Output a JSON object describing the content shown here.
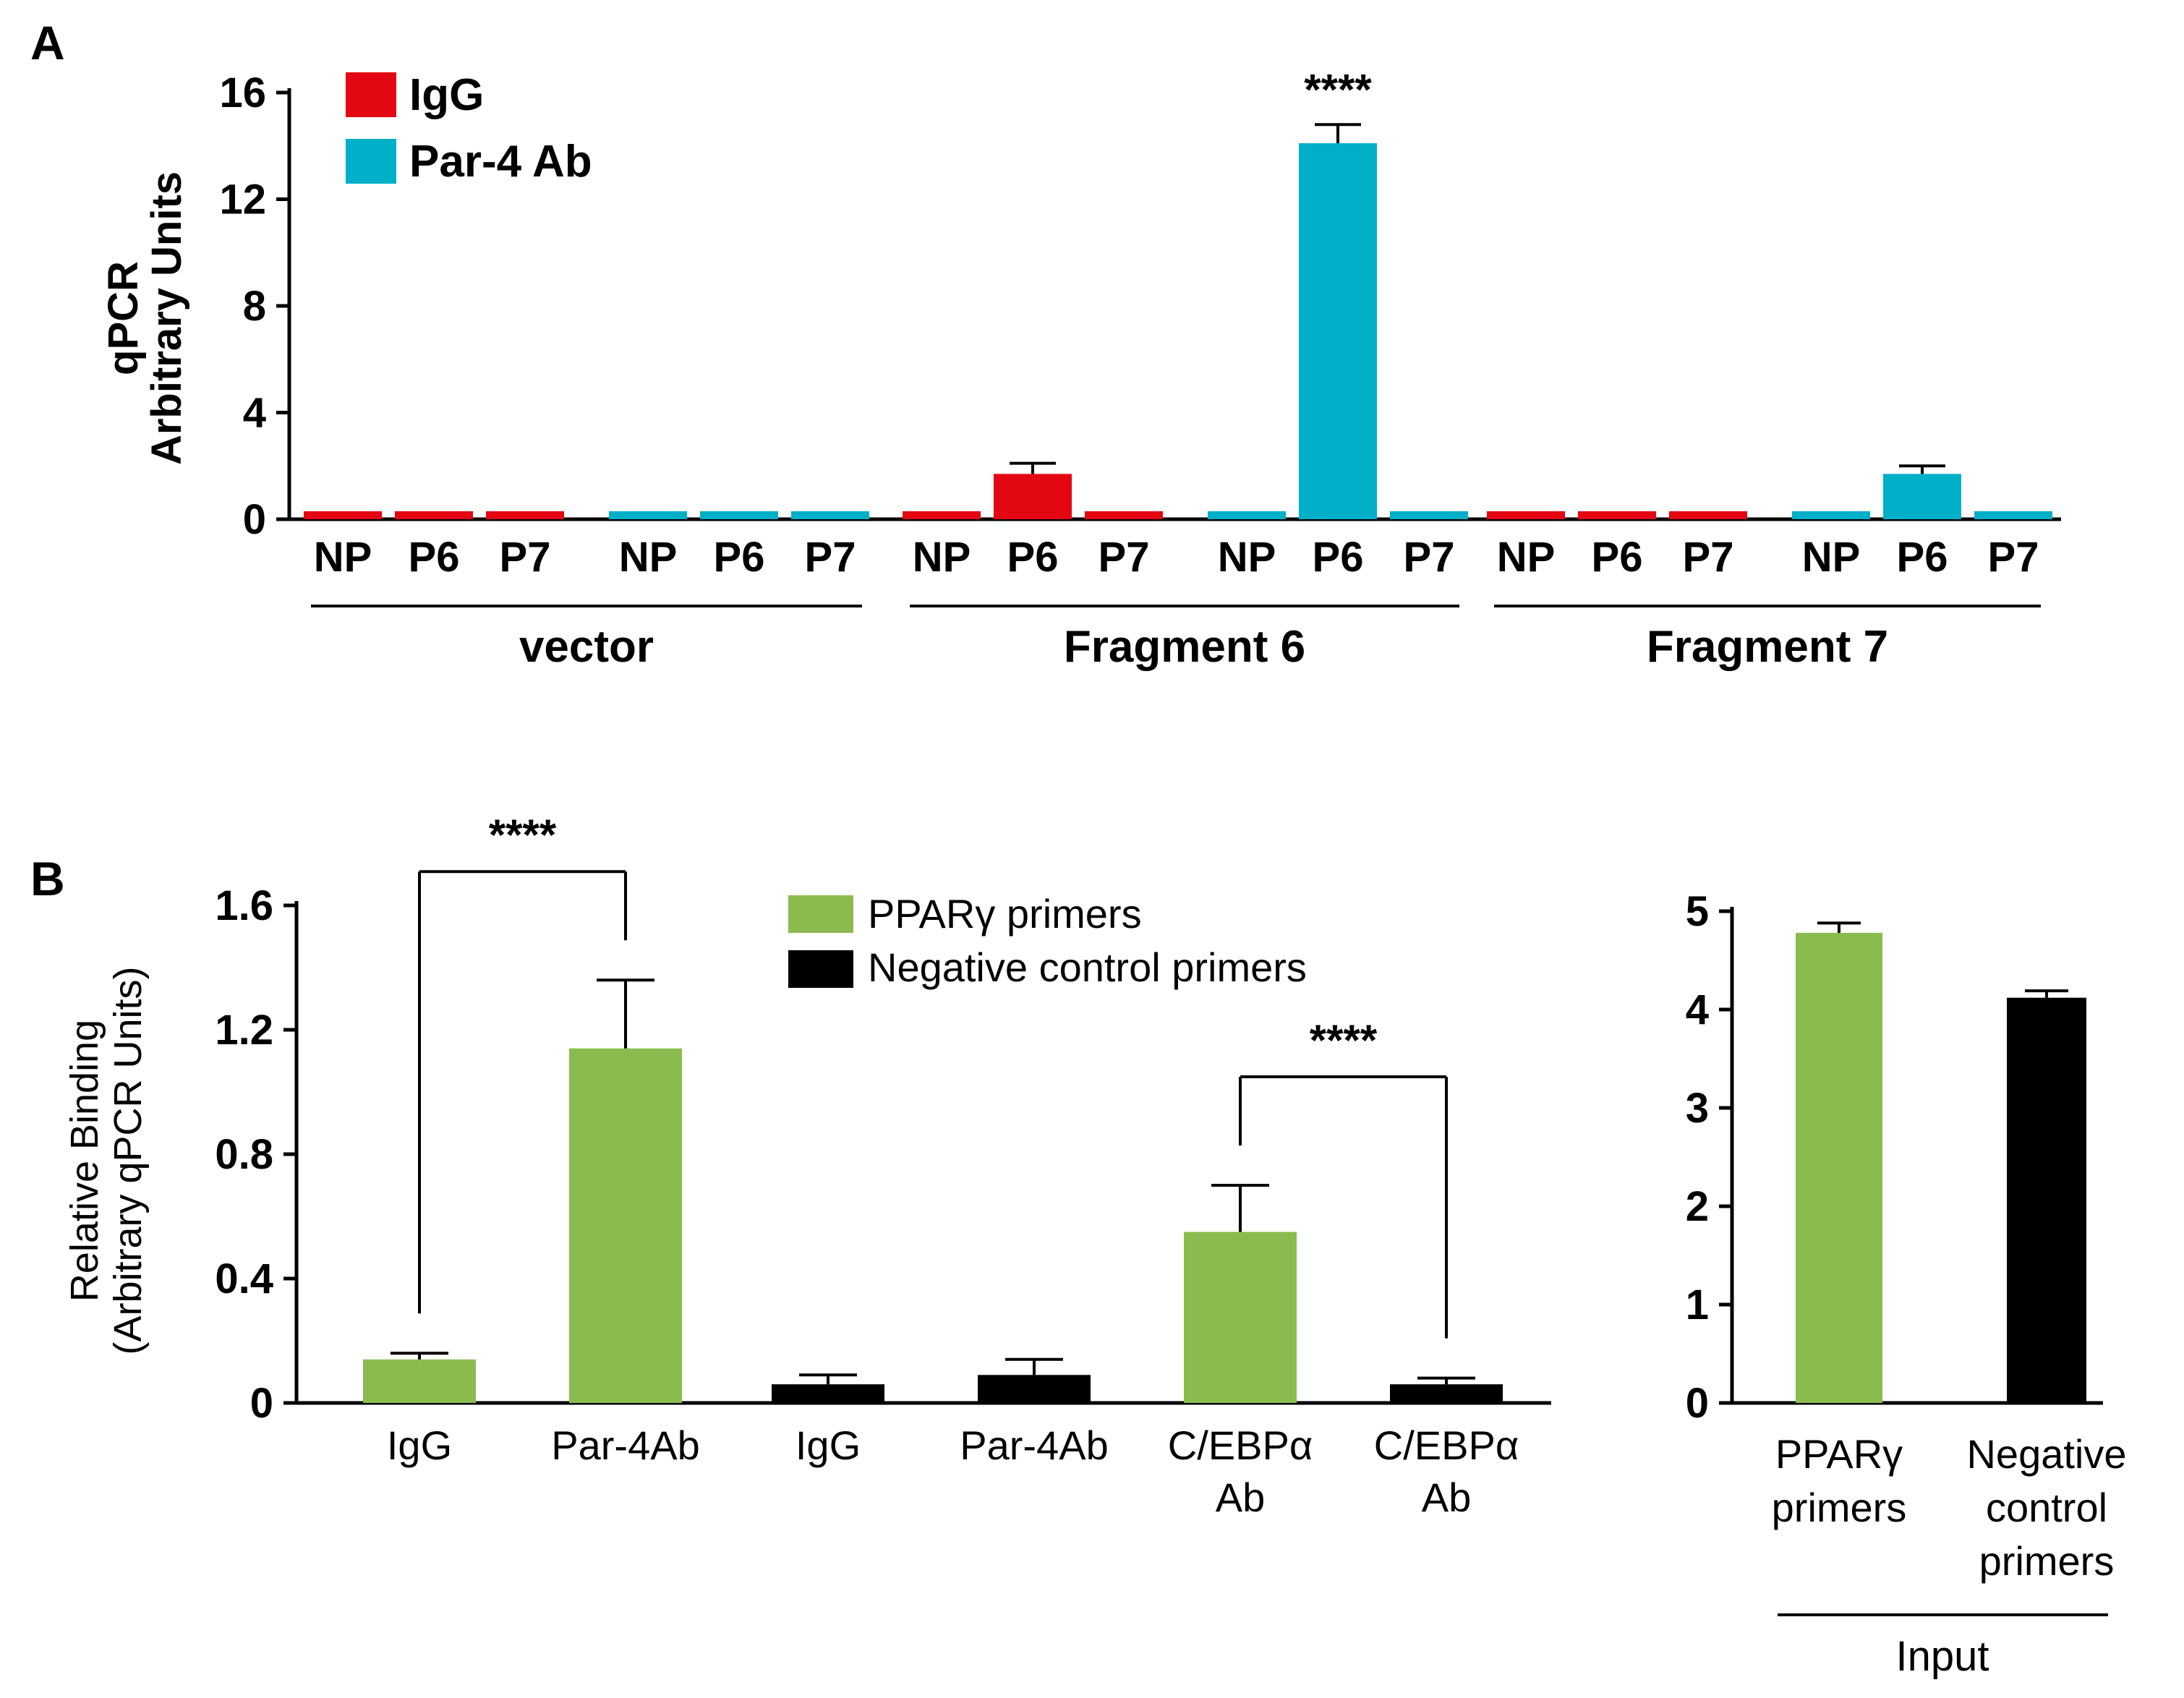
{
  "colors": {
    "igg": "#e30613",
    "par4": "#00afc8",
    "green": "#8bbb4f",
    "black": "#000000",
    "axis": "#000000"
  },
  "chart_data": [
    {
      "type": "bar",
      "panel_label": "A",
      "ylabel": [
        "qPCR",
        "Arbitrary Units"
      ],
      "ylim": [
        0,
        16
      ],
      "yticks": [
        0,
        4,
        8,
        12,
        16
      ],
      "legend": [
        {
          "name": "IgG",
          "color": "#e30613"
        },
        {
          "name": "Par-4 Ab",
          "color": "#00afc8"
        }
      ],
      "groups": [
        {
          "label": "vector",
          "bars": [
            {
              "category": "NP",
              "series": "IgG",
              "value": 0.3,
              "error": 0
            },
            {
              "category": "P6",
              "series": "IgG",
              "value": 0.3,
              "error": 0
            },
            {
              "category": "P7",
              "series": "IgG",
              "value": 0.3,
              "error": 0
            },
            {
              "category": "NP",
              "series": "Par-4 Ab",
              "value": 0.3,
              "error": 0
            },
            {
              "category": "P6",
              "series": "Par-4 Ab",
              "value": 0.3,
              "error": 0
            },
            {
              "category": "P7",
              "series": "Par-4 Ab",
              "value": 0.3,
              "error": 0
            }
          ]
        },
        {
          "label": "Fragment 6",
          "bars": [
            {
              "category": "NP",
              "series": "IgG",
              "value": 0.3,
              "error": 0
            },
            {
              "category": "P6",
              "series": "IgG",
              "value": 1.7,
              "error": 0.4
            },
            {
              "category": "P7",
              "series": "IgG",
              "value": 0.3,
              "error": 0
            },
            {
              "category": "NP",
              "series": "Par-4 Ab",
              "value": 0.3,
              "error": 0
            },
            {
              "category": "P6",
              "series": "Par-4 Ab",
              "value": 14.1,
              "error": 0.7,
              "annotation": "****"
            },
            {
              "category": "P7",
              "series": "Par-4 Ab",
              "value": 0.3,
              "error": 0
            }
          ]
        },
        {
          "label": "Fragment 7",
          "bars": [
            {
              "category": "NP",
              "series": "IgG",
              "value": 0.3,
              "error": 0
            },
            {
              "category": "P6",
              "series": "IgG",
              "value": 0.3,
              "error": 0
            },
            {
              "category": "P7",
              "series": "IgG",
              "value": 0.3,
              "error": 0
            },
            {
              "category": "NP",
              "series": "Par-4 Ab",
              "value": 0.3,
              "error": 0
            },
            {
              "category": "P6",
              "series": "Par-4 Ab",
              "value": 1.7,
              "error": 0.3
            },
            {
              "category": "P7",
              "series": "Par-4 Ab",
              "value": 0.3,
              "error": 0
            }
          ]
        }
      ]
    },
    {
      "type": "bar",
      "panel_label": "B",
      "ylabel": [
        "Relative Binding",
        "(Arbitrary qPCR Units)"
      ],
      "ylim": [
        0,
        1.6
      ],
      "yticks": [
        "0",
        "0.4",
        "0.8",
        "1.2",
        "1.6"
      ],
      "legend": [
        {
          "name": "PPARγ primers",
          "color": "#8bbb4f"
        },
        {
          "name": "Negative control primers",
          "color": "#000000"
        }
      ],
      "bars": [
        {
          "label": [
            "IgG"
          ],
          "series": "PPARγ primers",
          "value": 0.14,
          "error": 0.02
        },
        {
          "label": [
            "Par-4Ab"
          ],
          "series": "PPARγ primers",
          "value": 1.14,
          "error": 0.22
        },
        {
          "label": [
            "IgG"
          ],
          "series": "Negative control primers",
          "value": 0.06,
          "error": 0.03
        },
        {
          "label": [
            "Par-4Ab"
          ],
          "series": "Negative control primers",
          "value": 0.09,
          "error": 0.05
        },
        {
          "label": [
            "C/EBPα",
            "Ab"
          ],
          "series": "PPARγ primers",
          "value": 0.55,
          "error": 0.15
        },
        {
          "label": [
            "C/EBPα",
            "Ab"
          ],
          "series": "Negative control primers",
          "value": 0.06,
          "error": 0.02
        }
      ],
      "significance": [
        {
          "from": 0,
          "to": 1,
          "label": "****"
        },
        {
          "from": 4,
          "to": 5,
          "label": "****"
        }
      ]
    },
    {
      "type": "bar",
      "panel_label": "",
      "ylim": [
        0,
        5
      ],
      "yticks": [
        "0",
        "1",
        "2",
        "3",
        "4",
        "5"
      ],
      "bars": [
        {
          "label": [
            "PPARγ",
            "primers"
          ],
          "series": "PPARγ primers",
          "value": 4.78,
          "error": 0.1
        },
        {
          "label": [
            "Negative",
            "control",
            "primers"
          ],
          "series": "Negative control primers",
          "value": 4.12,
          "error": 0.07
        }
      ],
      "group_label": "Input"
    }
  ]
}
